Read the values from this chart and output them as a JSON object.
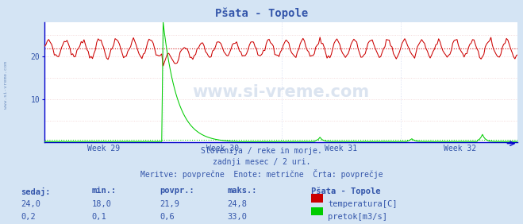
{
  "title": "Pšata - Topole",
  "subtitle1": "Slovenija / reke in morje.",
  "subtitle2": "zadnji mesec / 2 uri.",
  "subtitle3": "Meritve: povprečne  Enote: metrične  Črta: povprečje",
  "watermark": "www.si-vreme.com",
  "bg_color": "#d4e4f4",
  "plot_bg_color": "#ffffff",
  "grid_color_h": "#f0d0d0",
  "grid_color_v": "#d0d8f0",
  "temp_color": "#cc0000",
  "flow_color": "#00cc00",
  "axis_color": "#0000cc",
  "weeks": [
    "Week 29",
    "Week 30",
    "Week 31",
    "Week 32"
  ],
  "temp_ylim": [
    0,
    28
  ],
  "temp_yticks": [
    10,
    20
  ],
  "flow_ylim": [
    0,
    33.0
  ],
  "n_points": 336,
  "flood_peak_idx": 84,
  "flood_peak_value": 33.0,
  "temp_base": 21.9,
  "temp_amplitude_before": 2.0,
  "temp_amplitude_after": 1.5,
  "temp_period": 12,
  "temp_dip": 4.0,
  "flow_base": 0.15,
  "legend_title": "Pšata - Topole",
  "table_headers": [
    "sedaj:",
    "min.:",
    "povpr.:",
    "maks.:"
  ],
  "table_row1": [
    "24,0",
    "18,0",
    "21,9",
    "24,8"
  ],
  "table_row2": [
    "0,2",
    "0,1",
    "0,6",
    "33,0"
  ],
  "table_label1": "temperatura[C]",
  "table_label2": "pretok[m3/s]",
  "text_color": "#3355aa",
  "left_margin_text": "www.si-vreme.com"
}
